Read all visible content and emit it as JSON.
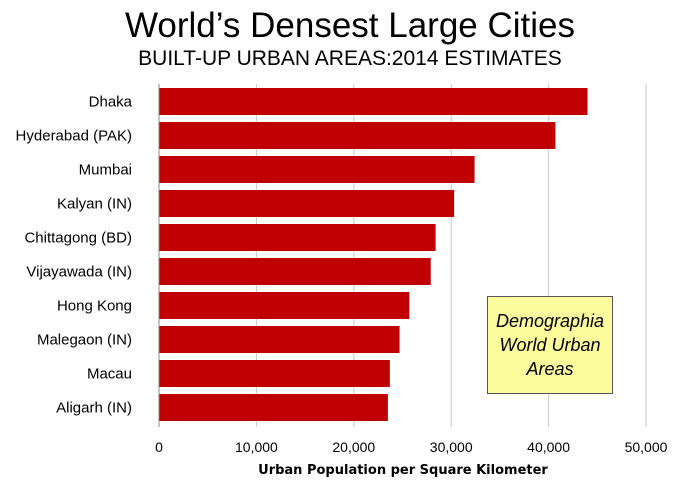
{
  "chart_data": {
    "type": "bar",
    "orientation": "horizontal",
    "title": "World’s Densest Large Cities",
    "subtitle": "BUILT-UP URBAN AREAS:2014 ESTIMATES",
    "xlabel": "Urban Population per Square Kilometer",
    "ylabel": "",
    "categories": [
      "Dhaka",
      "Hyderabad (PAK)",
      "Mumbai",
      "Kalyan (IN)",
      "Chittagong (BD)",
      "Vijayawada (IN)",
      "Hong Kong",
      "Malegaon (IN)",
      "Macau",
      "Aligarh (IN)"
    ],
    "values": [
      44000,
      40700,
      32400,
      30300,
      28400,
      27900,
      25700,
      24700,
      23700,
      23500
    ],
    "xlim": [
      0,
      50000
    ],
    "xticks": [
      0,
      10000,
      20000,
      30000,
      40000,
      50000
    ],
    "xtick_labels": [
      "0",
      "10,000",
      "20,000",
      "30,000",
      "40,000",
      "50,000"
    ],
    "grid": "vertical",
    "bar_color": "#c00000",
    "annotation": {
      "lines": [
        "Demographia",
        "World Urban",
        "Areas"
      ],
      "background": "#fdfc9d"
    }
  }
}
